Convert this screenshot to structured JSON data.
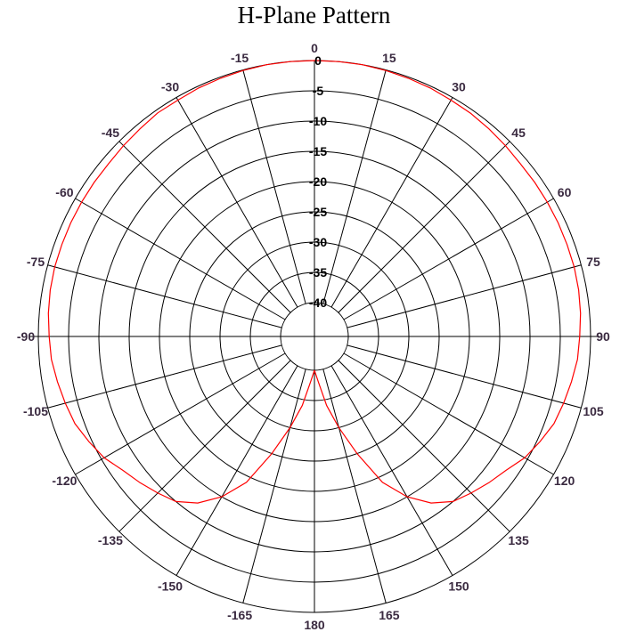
{
  "chart_data": {
    "type": "polar-line",
    "title": "H-Plane Pattern",
    "angle_ticks": [
      0,
      15,
      30,
      45,
      60,
      75,
      90,
      105,
      120,
      135,
      150,
      165,
      180,
      -165,
      -150,
      -135,
      -120,
      -105,
      -90,
      -75,
      -60,
      -45,
      -30,
      -15
    ],
    "angle_labels": [
      "0",
      "15",
      "30",
      "45",
      "60",
      "75",
      "90",
      "105",
      "120",
      "135",
      "150",
      "165",
      "180",
      "-165",
      "-150",
      "-135",
      "-120",
      "-105",
      "-90",
      "-75",
      "-60",
      "-45",
      "-30",
      "-15"
    ],
    "radial_range": [
      -40,
      0
    ],
    "radial_ticks": [
      0,
      -5,
      -10,
      -15,
      -20,
      -25,
      -30,
      -35,
      -40
    ],
    "radial_labels": [
      "0",
      "-5",
      "-10",
      "-15",
      "-20",
      "-25",
      "-30",
      "-35",
      "-40"
    ],
    "grid": true,
    "series": [
      {
        "color": "#ff0000",
        "angles": [
          -180,
          -175,
          -170,
          -165,
          -160,
          -155,
          -150,
          -145,
          -140,
          -135,
          -130,
          -125,
          -120,
          -115,
          -110,
          -105,
          -100,
          -95,
          -90,
          -85,
          -80,
          -75,
          -70,
          -65,
          -60,
          -55,
          -50,
          -45,
          -40,
          -35,
          -30,
          -25,
          -20,
          -15,
          -10,
          -5,
          0,
          5,
          10,
          15,
          20,
          25,
          30,
          35,
          40,
          45,
          50,
          55,
          60,
          65,
          70,
          75,
          80,
          85,
          90,
          95,
          100,
          105,
          110,
          115,
          120,
          125,
          130,
          135,
          140,
          145,
          150,
          155,
          160,
          165,
          170,
          175,
          180
        ],
        "values": [
          -40,
          -38,
          -34,
          -30,
          -25,
          -19,
          -15,
          -12,
          -10,
          -9,
          -8,
          -7,
          -5.5,
          -4.5,
          -3.5,
          -3,
          -2.5,
          -2,
          -1.8,
          -1.5,
          -1.3,
          -1.2,
          -1.2,
          -1.2,
          -1.2,
          -1.2,
          -1.2,
          -1.0,
          -0.8,
          -0.5,
          -0.5,
          -0.3,
          -0.2,
          -0.1,
          0,
          0,
          0,
          0,
          0,
          -0.1,
          -0.2,
          -0.3,
          -0.5,
          -0.6,
          -0.8,
          -1.0,
          -1.2,
          -1.2,
          -1.2,
          -1.2,
          -1.2,
          -1.2,
          -1.3,
          -1.5,
          -1.8,
          -2,
          -2.5,
          -3,
          -3.5,
          -4.5,
          -5.5,
          -7,
          -8,
          -9,
          -10,
          -12,
          -15,
          -19,
          -25,
          -30,
          -34,
          -38,
          -40
        ]
      }
    ]
  }
}
